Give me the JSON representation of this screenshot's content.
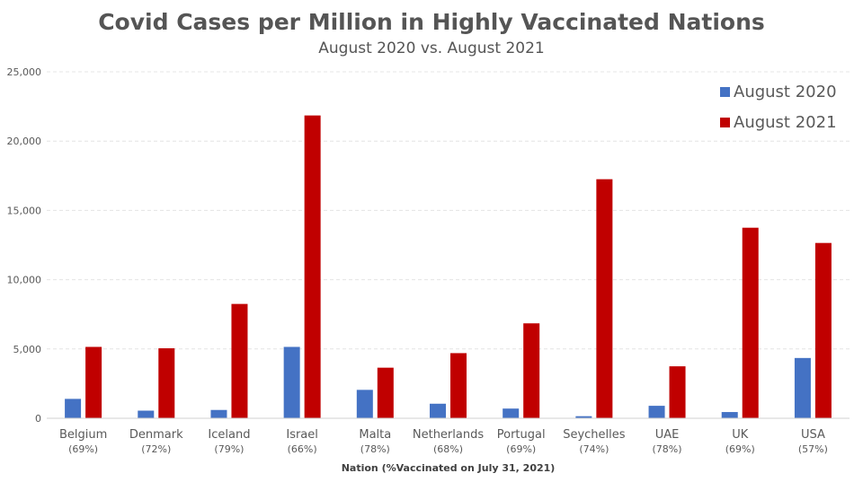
{
  "chart_data": {
    "type": "bar",
    "title": "Covid Cases per Million in Highly Vaccinated Nations",
    "subtitle": "August 2020 vs. August 2021",
    "xlabel": "Nation (%Vaccinated on July 31, 2021)",
    "ylabel": "",
    "ylim": [
      0,
      25000
    ],
    "yticks": [
      "0",
      "5,000",
      "10,000",
      "15,000",
      "20,000",
      "25,000"
    ],
    "grid": true,
    "legend_position": "top-right",
    "categories": [
      "Belgium",
      "Denmark",
      "Iceland",
      "Israel",
      "Malta",
      "Netherlands",
      "Portugal",
      "Seychelles",
      "UAE",
      "UK",
      "USA"
    ],
    "category_sublabels": [
      "(69%)",
      "(72%)",
      "(79%)",
      "(66%)",
      "(78%)",
      "(68%)",
      "(69%)",
      "(74%)",
      "(78%)",
      "(69%)",
      "(57%)"
    ],
    "series": [
      {
        "name": "August 2020",
        "color": "#4472C4",
        "values": [
          1400,
          550,
          600,
          5150,
          2050,
          1050,
          700,
          150,
          900,
          450,
          4350
        ]
      },
      {
        "name": "August 2021",
        "color": "#C00000",
        "values": [
          5150,
          5050,
          8250,
          21850,
          3650,
          4700,
          6850,
          17250,
          3750,
          13750,
          12650
        ]
      }
    ]
  }
}
